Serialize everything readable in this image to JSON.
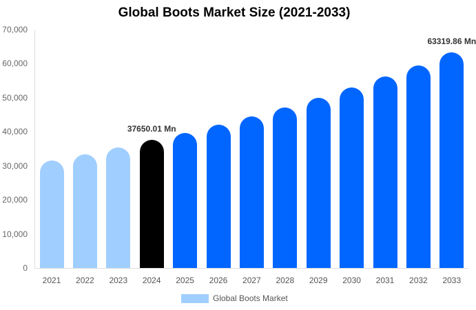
{
  "chart_data": {
    "type": "bar",
    "title": "Global Boots Market Size (2021-2033)",
    "xlabel": "",
    "ylabel": "",
    "ylim": [
      0,
      70000
    ],
    "yticks": [
      "0",
      "10,000",
      "20,000",
      "30,000",
      "40,000",
      "50,000",
      "60,000",
      "70,000"
    ],
    "grid": false,
    "legend_position": "bottom",
    "categories": [
      "2021",
      "2022",
      "2023",
      "2024",
      "2025",
      "2026",
      "2027",
      "2028",
      "2029",
      "2030",
      "2031",
      "2032",
      "2033"
    ],
    "series": [
      {
        "name": "Global Boots Market",
        "values": [
          31560,
          33380,
          35400,
          37650.01,
          39650,
          42080,
          44510,
          47140,
          49970,
          53000,
          56240,
          59480,
          63319.86
        ]
      }
    ],
    "bar_colors": [
      "#a0cfff",
      "#a0cfff",
      "#a0cfff",
      "#000000",
      "#0066ff",
      "#0066ff",
      "#0066ff",
      "#0066ff",
      "#0066ff",
      "#0066ff",
      "#0066ff",
      "#0066ff",
      "#0066ff"
    ],
    "annotations": [
      {
        "category": "2024",
        "text": "37650.01 Mn"
      },
      {
        "category": "2033",
        "text": "63319.86 Mn"
      }
    ]
  },
  "legend": {
    "label": "Global Boots Market",
    "color": "#a0cfff"
  }
}
